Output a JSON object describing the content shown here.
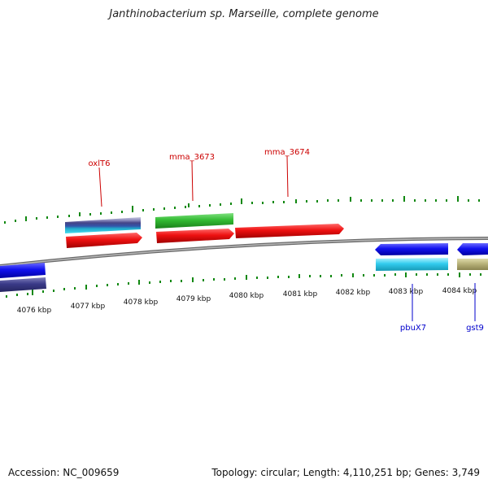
{
  "header": {
    "title": "Janthinobacterium sp. Marseille, complete genome"
  },
  "footer": {
    "accession": "Accession: NC_009659",
    "topology": "Topology: circular; Length: 4,110,251 bp; Genes: 3,749"
  },
  "scale_labels": [
    "4076 kbp",
    "4077 kbp",
    "4078 kbp",
    "4079 kbp",
    "4080 kbp",
    "4081 kbp",
    "4082 kbp",
    "4083 kbp",
    "4084 kbp"
  ],
  "gene_labels": {
    "top": [
      "oxlT6",
      "mma_3673",
      "mma_3674"
    ],
    "bottom": [
      "pbuX7",
      "gst9"
    ]
  },
  "colors": {
    "cds_forward": "#ee1111",
    "cds_reverse": "#1111ee",
    "backbone": "#888888",
    "ticks": "#118811",
    "label_top": "#cc0000",
    "label_bottom": "#0000cc"
  }
}
